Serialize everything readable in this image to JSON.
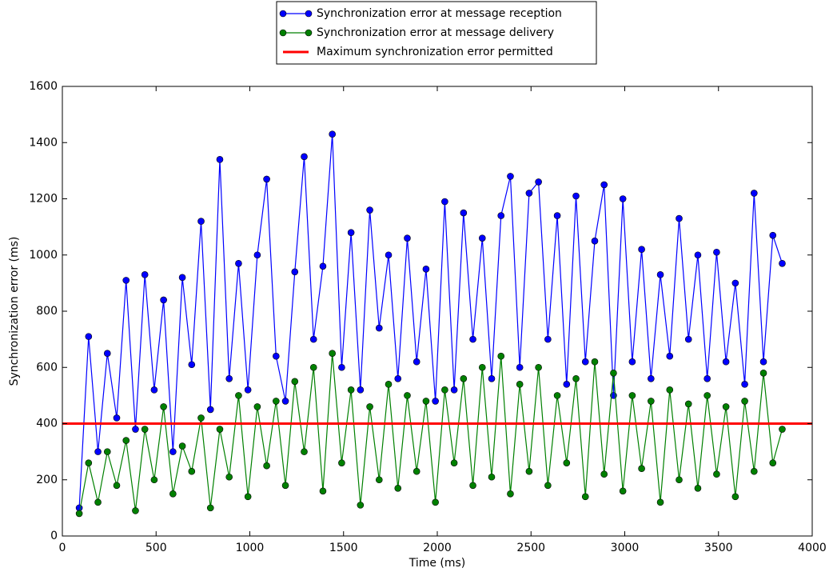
{
  "chart_data": {
    "type": "line",
    "xlabel": "Time (ms)",
    "ylabel": "Synchronization error (ms)",
    "xlim": [
      0,
      4000
    ],
    "ylim": [
      0,
      1600
    ],
    "xticks": [
      0,
      500,
      1000,
      1500,
      2000,
      2500,
      3000,
      3500,
      4000
    ],
    "yticks": [
      0,
      200,
      400,
      600,
      800,
      1000,
      1200,
      1400,
      1600
    ],
    "legend": "top",
    "series": [
      {
        "name": "Synchronization error at message reception",
        "color": "#0000ff",
        "marker": true,
        "x": [
          90,
          140,
          190,
          240,
          290,
          340,
          390,
          440,
          490,
          540,
          590,
          640,
          690,
          740,
          790,
          840,
          890,
          940,
          990,
          1040,
          1090,
          1140,
          1190,
          1240,
          1290,
          1340,
          1390,
          1440,
          1490,
          1540,
          1590,
          1640,
          1690,
          1740,
          1790,
          1840,
          1890,
          1940,
          1990,
          2040,
          2090,
          2140,
          2190,
          2240,
          2290,
          2340,
          2390,
          2440,
          2490,
          2540,
          2590,
          2640,
          2690,
          2740,
          2790,
          2840,
          2890,
          2940,
          2990,
          3040,
          3090,
          3140,
          3190,
          3240,
          3290,
          3340,
          3390,
          3440,
          3490,
          3540,
          3590,
          3640,
          3690,
          3740,
          3790,
          3840
        ],
        "values": [
          100,
          710,
          300,
          650,
          420,
          910,
          380,
          930,
          520,
          840,
          300,
          920,
          610,
          1120,
          450,
          1340,
          560,
          970,
          520,
          1000,
          1270,
          640,
          480,
          940,
          1350,
          700,
          960,
          1430,
          600,
          1080,
          520,
          1160,
          740,
          1000,
          560,
          1060,
          620,
          950,
          480,
          1190,
          520,
          1150,
          700,
          1060,
          560,
          1140,
          1280,
          600,
          1220,
          1260,
          700,
          1140,
          540,
          1210,
          620,
          1050,
          1250,
          500,
          1200,
          620,
          1020,
          560,
          930,
          640,
          1130,
          700,
          1000,
          560,
          1010,
          620,
          900,
          540,
          1220,
          620,
          1070,
          970
        ]
      },
      {
        "name": "Synchronization error at message delivery",
        "color": "#008000",
        "marker": true,
        "x": [
          90,
          140,
          190,
          240,
          290,
          340,
          390,
          440,
          490,
          540,
          590,
          640,
          690,
          740,
          790,
          840,
          890,
          940,
          990,
          1040,
          1090,
          1140,
          1190,
          1240,
          1290,
          1340,
          1390,
          1440,
          1490,
          1540,
          1590,
          1640,
          1690,
          1740,
          1790,
          1840,
          1890,
          1940,
          1990,
          2040,
          2090,
          2140,
          2190,
          2240,
          2290,
          2340,
          2390,
          2440,
          2490,
          2540,
          2590,
          2640,
          2690,
          2740,
          2790,
          2840,
          2890,
          2940,
          2990,
          3040,
          3090,
          3140,
          3190,
          3240,
          3290,
          3340,
          3390,
          3440,
          3490,
          3540,
          3590,
          3640,
          3690,
          3740,
          3790,
          3840
        ],
        "values": [
          80,
          260,
          120,
          300,
          180,
          340,
          90,
          380,
          200,
          460,
          150,
          320,
          230,
          420,
          100,
          380,
          210,
          500,
          140,
          460,
          250,
          480,
          180,
          550,
          300,
          600,
          160,
          650,
          260,
          520,
          110,
          460,
          200,
          540,
          170,
          500,
          230,
          480,
          120,
          520,
          260,
          560,
          180,
          600,
          210,
          640,
          150,
          540,
          230,
          600,
          180,
          500,
          260,
          560,
          140,
          620,
          220,
          580,
          160,
          500,
          240,
          480,
          120,
          520,
          200,
          470,
          170,
          500,
          220,
          460,
          140,
          480,
          230,
          580,
          260,
          380
        ]
      },
      {
        "name": "Maximum synchronization error permitted",
        "color": "#ff0000",
        "marker": false,
        "x": [
          0,
          4000
        ],
        "values": [
          400,
          400
        ]
      }
    ]
  }
}
